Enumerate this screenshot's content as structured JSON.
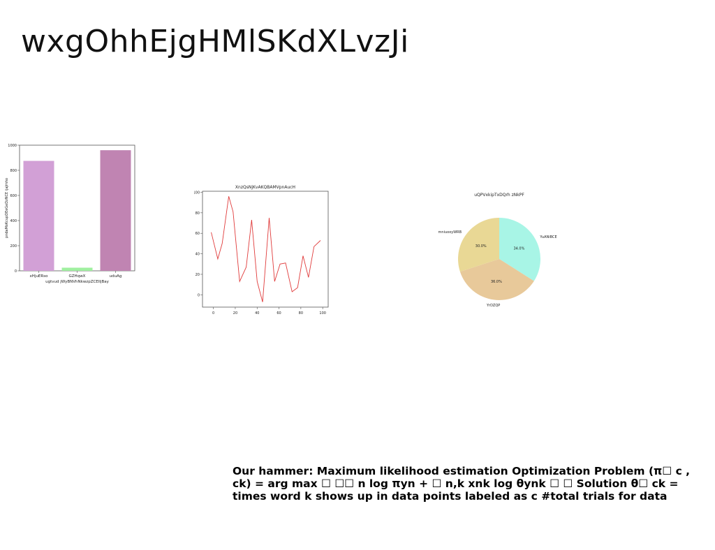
{
  "slide": {
    "title": "wxgOhhEjgHMlSKdXLvzJi",
    "caption": "Our hammer: Maximum likelihood estimation Optimization Problem (π☐ c , ck) = arg max ☐ ☐☐ n log πyn + ☐ n,k xnk log θynk ☐ ☐ Solution θ☐ ck = times word k shows up in data points labeled as c #total trials for data"
  },
  "chart_data": [
    {
      "type": "bar",
      "title": "",
      "xlabel": "ugtvud jWyBNVhNkwzpZCElIjBay",
      "ylabel": "pndaMoKcupDEeGeDzNCE ijaJmho",
      "categories": [
        "xHjuERso",
        "GZHqwX",
        "uduAg"
      ],
      "values": [
        875,
        25,
        960
      ],
      "colors": [
        "#d2a0d6",
        "#a0f0a0",
        "#c084b2"
      ],
      "ylim": [
        0,
        1000
      ],
      "yticks": [
        0,
        200,
        400,
        600,
        800,
        1000
      ],
      "grid": false
    },
    {
      "type": "line",
      "title": "XnzQsNjKvAKQBAMVpnAucH",
      "xlabel": "",
      "ylabel": "",
      "color": "#e03a3a",
      "x": [
        -2,
        4,
        8,
        14,
        18,
        24,
        30,
        35,
        40,
        45,
        51,
        56,
        61,
        66,
        72,
        77,
        82,
        87,
        92,
        98
      ],
      "y": [
        61,
        35,
        50,
        96,
        81,
        13,
        27,
        73,
        13,
        -7,
        75,
        13,
        30,
        31,
        3,
        7,
        38,
        17,
        47,
        53
      ],
      "xlim": [
        -10,
        105
      ],
      "ylim": [
        -12,
        101
      ],
      "xticks": [
        0,
        20,
        40,
        60,
        80,
        100
      ],
      "yticks": [
        0,
        20,
        40,
        60,
        80,
        100
      ],
      "grid": false
    },
    {
      "type": "pie",
      "title": "uQPVxkipTxDQrh zNkPF",
      "slices": [
        {
          "label": "YuANiBCE",
          "value": 34.0,
          "pct_label": "34.0%",
          "color": "#a8f5e6"
        },
        {
          "label": "YrDZQP",
          "value": 36.0,
          "pct_label": "36.0%",
          "color": "#e8c99a"
        },
        {
          "label": "mniuooyWRB",
          "value": 30.0,
          "pct_label": "30.0%",
          "color": "#e9d895"
        }
      ]
    }
  ]
}
